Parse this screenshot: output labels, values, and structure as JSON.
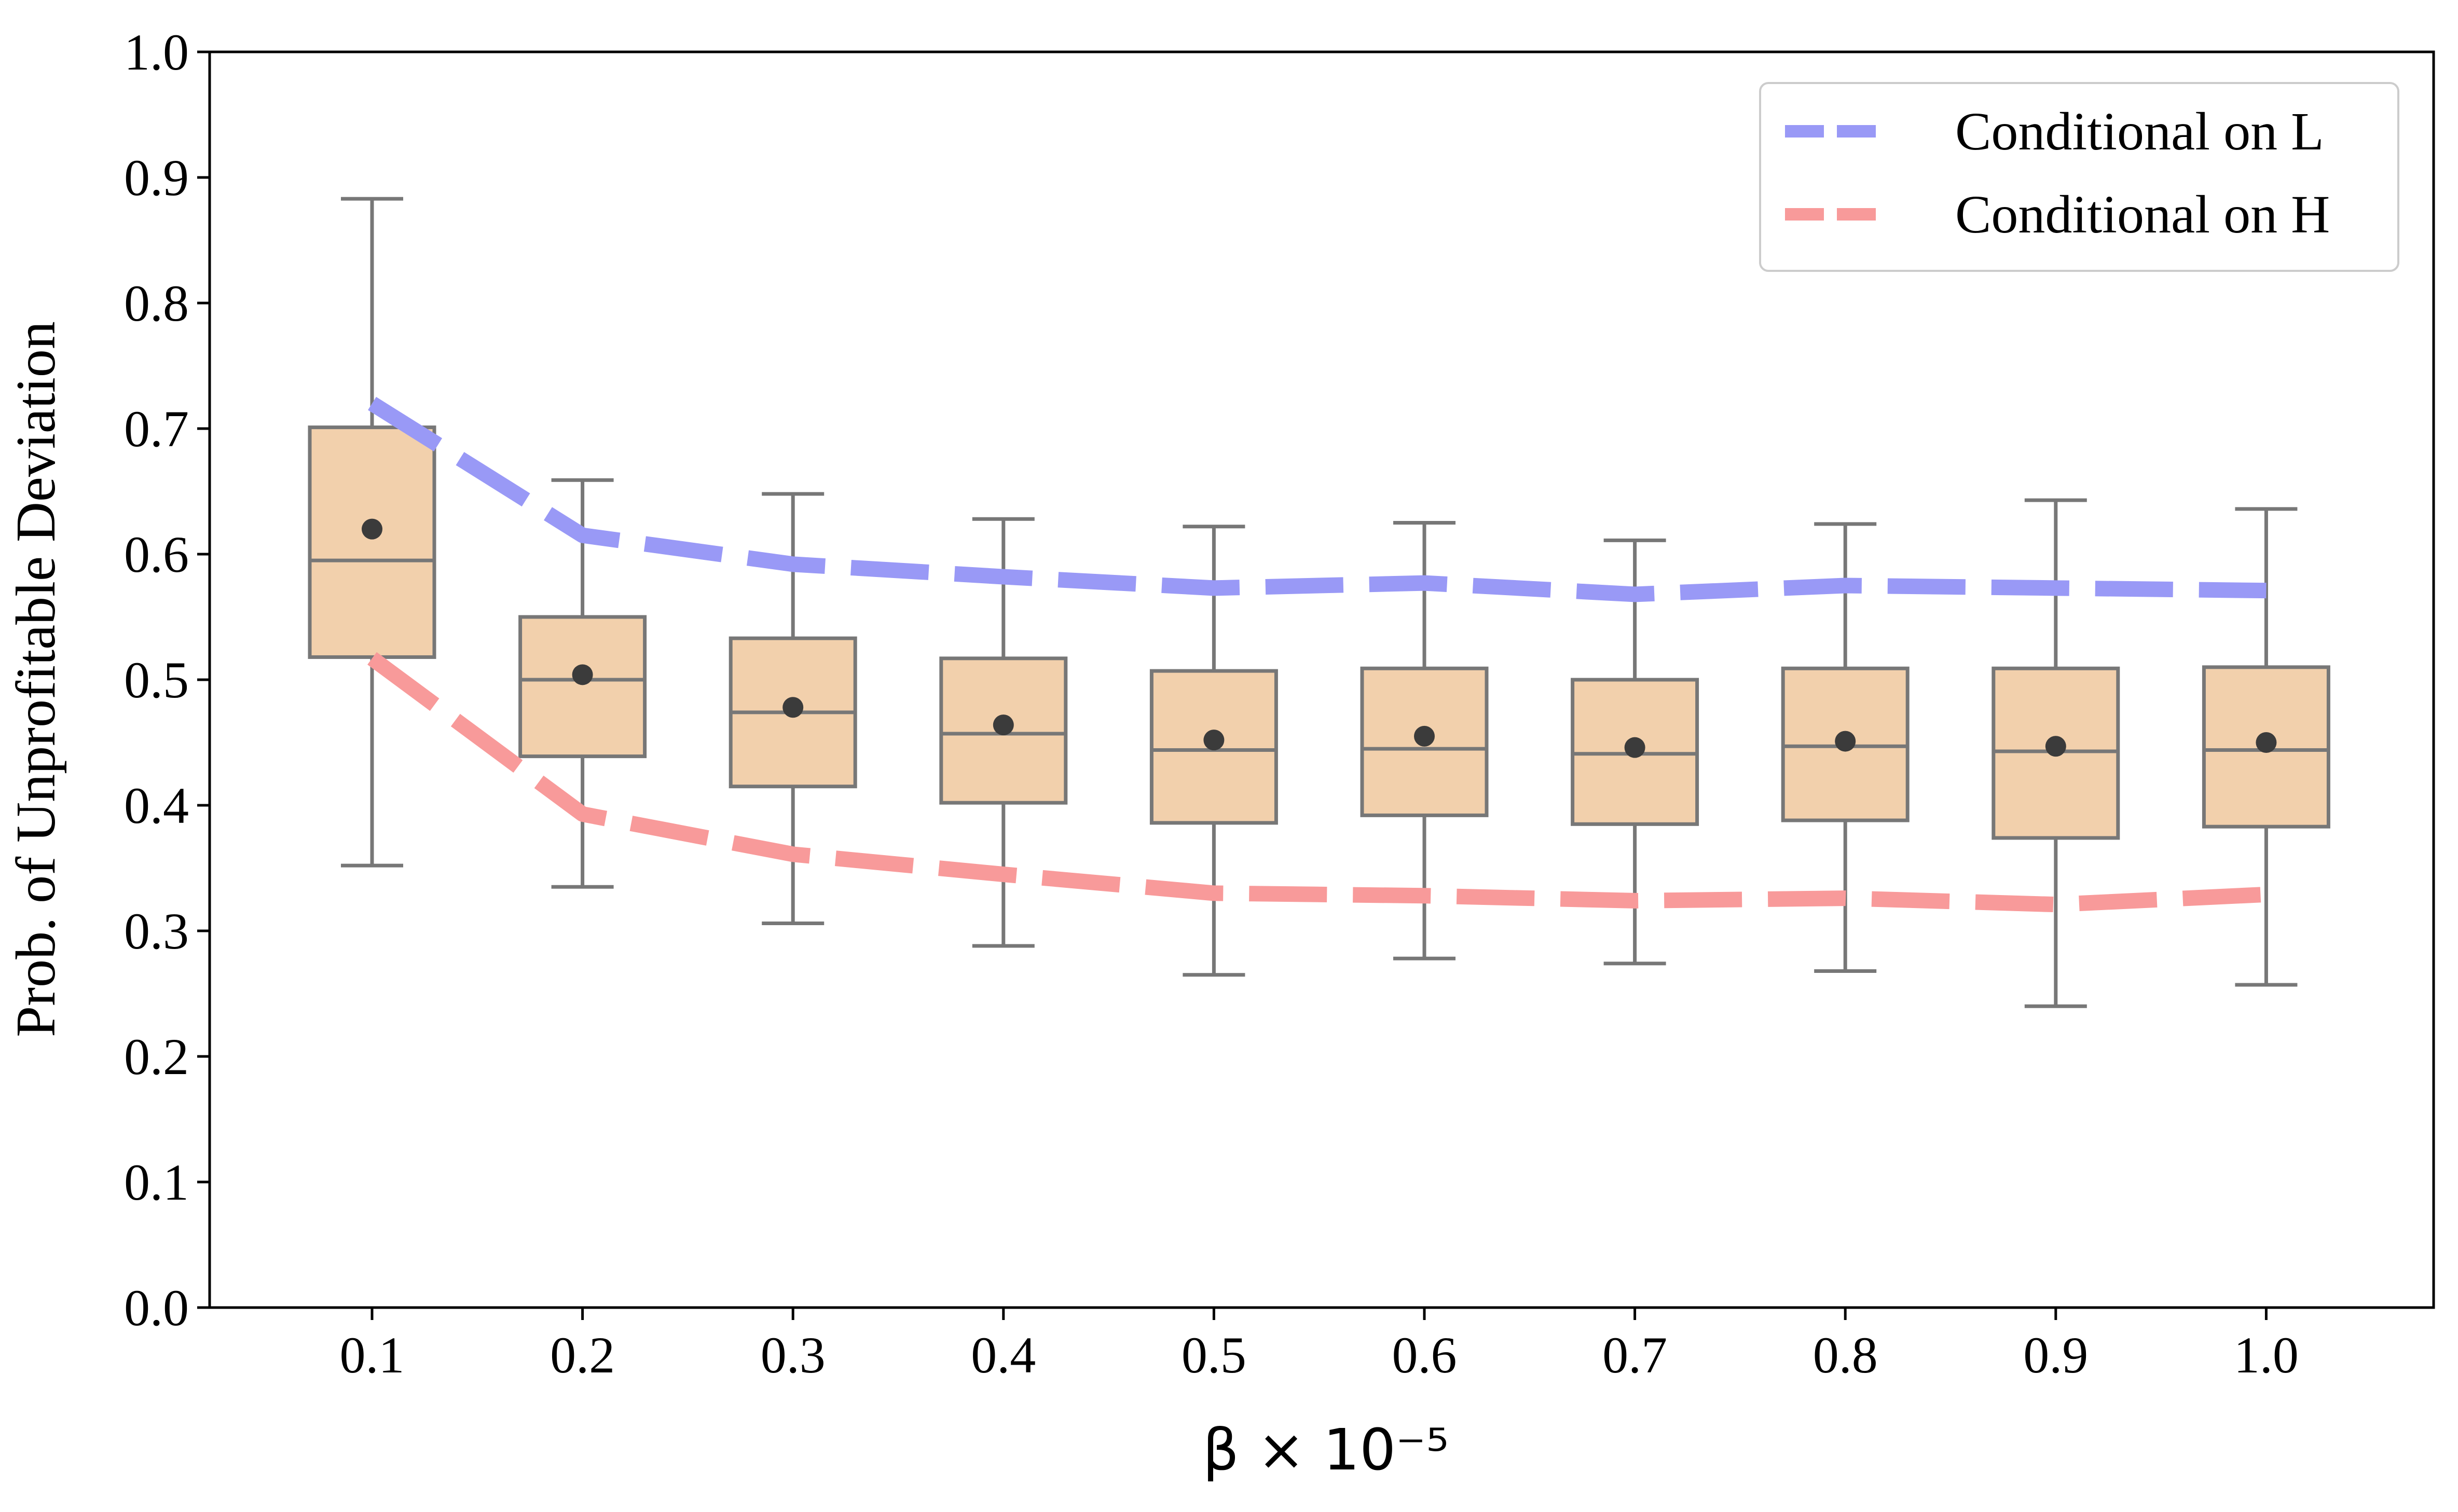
{
  "chart_data": {
    "type": "box",
    "title": "",
    "xlabel": "β × 10⁻⁵",
    "ylabel": "Prob. of Unprofitable Deviation",
    "ylim": [
      0.0,
      1.0
    ],
    "yticks": [
      "0.0",
      "0.1",
      "0.2",
      "0.3",
      "0.4",
      "0.5",
      "0.6",
      "0.7",
      "0.8",
      "0.9",
      "1.0"
    ],
    "categories": [
      "0.1",
      "0.2",
      "0.3",
      "0.4",
      "0.5",
      "0.6",
      "0.7",
      "0.8",
      "0.9",
      "1.0"
    ],
    "grid": false,
    "legend_position": "top-right",
    "boxes": [
      {
        "whisker_low": 0.352,
        "q1": 0.518,
        "median": 0.595,
        "q3": 0.701,
        "whisker_high": 0.883,
        "mean": 0.62
      },
      {
        "whisker_low": 0.335,
        "q1": 0.439,
        "median": 0.5,
        "q3": 0.55,
        "whisker_high": 0.659,
        "mean": 0.504
      },
      {
        "whisker_low": 0.306,
        "q1": 0.415,
        "median": 0.474,
        "q3": 0.533,
        "whisker_high": 0.648,
        "mean": 0.478
      },
      {
        "whisker_low": 0.288,
        "q1": 0.402,
        "median": 0.457,
        "q3": 0.517,
        "whisker_high": 0.628,
        "mean": 0.464
      },
      {
        "whisker_low": 0.265,
        "q1": 0.386,
        "median": 0.444,
        "q3": 0.507,
        "whisker_high": 0.622,
        "mean": 0.452
      },
      {
        "whisker_low": 0.278,
        "q1": 0.392,
        "median": 0.445,
        "q3": 0.509,
        "whisker_high": 0.625,
        "mean": 0.455
      },
      {
        "whisker_low": 0.274,
        "q1": 0.385,
        "median": 0.441,
        "q3": 0.5,
        "whisker_high": 0.611,
        "mean": 0.446
      },
      {
        "whisker_low": 0.268,
        "q1": 0.388,
        "median": 0.447,
        "q3": 0.509,
        "whisker_high": 0.624,
        "mean": 0.451
      },
      {
        "whisker_low": 0.24,
        "q1": 0.374,
        "median": 0.443,
        "q3": 0.509,
        "whisker_high": 0.643,
        "mean": 0.447
      },
      {
        "whisker_low": 0.257,
        "q1": 0.383,
        "median": 0.444,
        "q3": 0.51,
        "whisker_high": 0.636,
        "mean": 0.45
      }
    ],
    "series": [
      {
        "name": "Conditional on L",
        "color": "#9999f6",
        "values": [
          0.72,
          0.615,
          0.592,
          0.582,
          0.573,
          0.577,
          0.568,
          0.575,
          0.573,
          0.571
        ]
      },
      {
        "name": "Conditional on H",
        "color": "#f89a9a",
        "values": [
          0.517,
          0.393,
          0.361,
          0.345,
          0.33,
          0.328,
          0.324,
          0.326,
          0.321,
          0.329
        ]
      }
    ],
    "colors": {
      "box_fill": "#f2d0ac",
      "box_edge": "#777777",
      "mean_marker": "#3b3b3b",
      "axis": "#000000"
    }
  }
}
